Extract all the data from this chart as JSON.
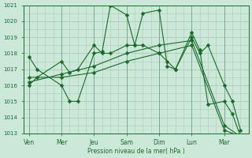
{
  "background_color": "#cce8d8",
  "grid_color": "#aacaba",
  "line_color": "#1a6b2a",
  "marker": "D",
  "markersize": 2.5,
  "linewidth": 0.8,
  "xlabel": "Pression niveau de la mer( hPa )",
  "ylim": [
    1013,
    1021
  ],
  "yticks": [
    1013,
    1014,
    1015,
    1016,
    1017,
    1018,
    1019,
    1020,
    1021
  ],
  "xtick_labels": [
    "Ven",
    "Mer",
    "Jeu",
    "Sam",
    "Dim",
    "Lun",
    "Mar"
  ],
  "xtick_positions": [
    0,
    24,
    48,
    72,
    96,
    120,
    144
  ],
  "xlim": [
    -4,
    162
  ],
  "series1_x": [
    0,
    6,
    24,
    30,
    36,
    48,
    54,
    60,
    72,
    78,
    84,
    96,
    102,
    108,
    120,
    126,
    132,
    144,
    150,
    156
  ],
  "series1_y": [
    1017.8,
    1017.0,
    1016.0,
    1015.0,
    1015.0,
    1018.0,
    1018.1,
    1021.0,
    1020.4,
    1018.5,
    1020.5,
    1020.7,
    1017.2,
    1017.0,
    1019.3,
    1018.2,
    1014.8,
    1015.0,
    1014.2,
    1012.8
  ],
  "series2_x": [
    0,
    24,
    48,
    72,
    96,
    120,
    144,
    156
  ],
  "series2_y": [
    1016.2,
    1016.7,
    1017.2,
    1018.0,
    1018.5,
    1018.8,
    1013.5,
    1012.8
  ],
  "series3_x": [
    0,
    6,
    24,
    30,
    36,
    48,
    54,
    60,
    72,
    78,
    84,
    96,
    102,
    108,
    120,
    126,
    132,
    144,
    150,
    156
  ],
  "series3_y": [
    1016.0,
    1016.5,
    1017.5,
    1016.8,
    1017.0,
    1018.5,
    1018.0,
    1018.0,
    1018.5,
    1018.5,
    1018.5,
    1018.0,
    1017.5,
    1017.0,
    1019.0,
    1018.0,
    1018.5,
    1016.0,
    1015.0,
    1013.2
  ],
  "series4_x": [
    0,
    24,
    48,
    72,
    96,
    120,
    144,
    156
  ],
  "series4_y": [
    1016.5,
    1016.5,
    1016.8,
    1017.5,
    1018.0,
    1018.5,
    1013.2,
    1012.8
  ]
}
